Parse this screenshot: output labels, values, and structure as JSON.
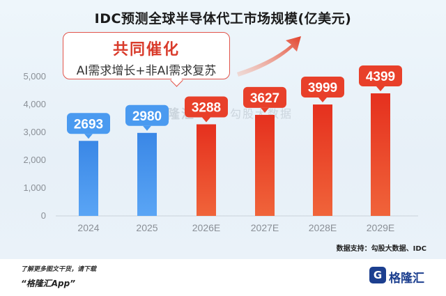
{
  "chart_data": {
    "type": "bar",
    "title": "IDC预测全球半导体代工市场规模(亿美元)",
    "categories": [
      "2024",
      "2025",
      "2026E",
      "2027E",
      "2028E",
      "2029E"
    ],
    "values": [
      2693,
      2980,
      3288,
      3627,
      3999,
      4399
    ],
    "value_labels": [
      "2693",
      "2980",
      "3288",
      "3627",
      "3999",
      "4399"
    ],
    "ylim": [
      0,
      5000
    ],
    "yticks": [
      "0",
      "1,000",
      "2,000",
      "3,000",
      "4,000",
      "5,000"
    ],
    "grid": false,
    "colors": {
      "actual": "#3d8fe8",
      "forecast": "#e63a24",
      "actual_label_bg": "#4a9af0",
      "forecast_label_bg": "#e8402a"
    }
  },
  "callout": {
    "title": "共同催化",
    "subtitle": "AI需求增长+非AI需求复苏"
  },
  "watermark": {
    "left": "格隆汇",
    "right": "勾股大数据"
  },
  "source": "数据支持：勾股大数据、IDC",
  "footer": {
    "line1": "了解更多图文干货，请下载",
    "line2": "“格隆汇App”"
  },
  "brand": {
    "logo_letter": "G",
    "name": "格隆汇"
  }
}
